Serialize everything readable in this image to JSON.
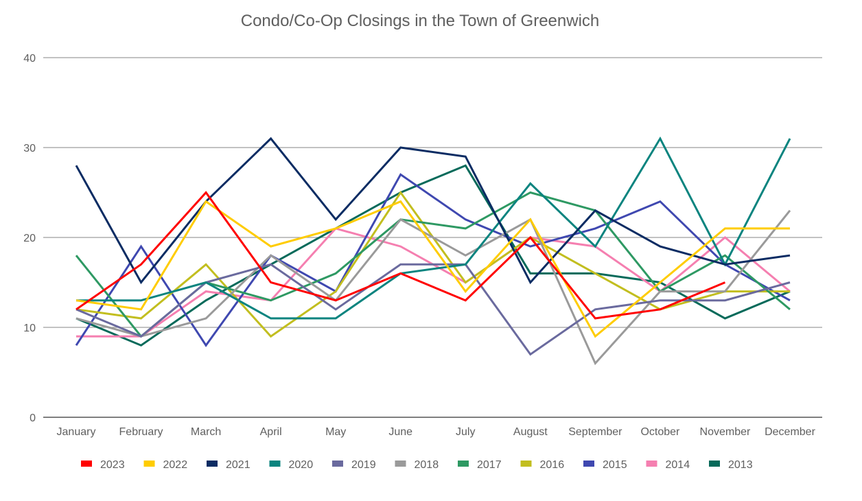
{
  "chart_data": {
    "type": "line",
    "title": "Condo/Co-Op Closings in the Town of Greenwich",
    "xlabel": "",
    "ylabel": "",
    "ylim": [
      0,
      40
    ],
    "yticks": [
      0,
      10,
      20,
      30,
      40
    ],
    "grid": true,
    "legend_position": "bottom",
    "categories": [
      "January",
      "February",
      "March",
      "April",
      "May",
      "June",
      "July",
      "August",
      "September",
      "October",
      "November",
      "December"
    ],
    "series": [
      {
        "name": "2023",
        "color": "#ff0000",
        "values": [
          12,
          17,
          25,
          15,
          13,
          16,
          13,
          20,
          11,
          12,
          15,
          null
        ]
      },
      {
        "name": "2022",
        "color": "#ffcc00",
        "values": [
          13,
          12,
          24,
          19,
          21,
          24,
          14,
          22,
          9,
          15,
          21,
          21
        ]
      },
      {
        "name": "2021",
        "color": "#0b2c63",
        "values": [
          28,
          15,
          24,
          31,
          22,
          30,
          29,
          15,
          23,
          19,
          17,
          18
        ]
      },
      {
        "name": "2020",
        "color": "#0b847f",
        "values": [
          13,
          13,
          15,
          11,
          11,
          16,
          17,
          26,
          19,
          31,
          17,
          31
        ]
      },
      {
        "name": "2019",
        "color": "#6a6a9e",
        "values": [
          12,
          9,
          15,
          17,
          12,
          17,
          17,
          7,
          12,
          13,
          13,
          15
        ]
      },
      {
        "name": "2018",
        "color": "#9a9a9a",
        "values": [
          11,
          9,
          11,
          18,
          13,
          22,
          18,
          22,
          6,
          14,
          14,
          23
        ]
      },
      {
        "name": "2017",
        "color": "#2e9963",
        "values": [
          18,
          9,
          15,
          13,
          16,
          22,
          21,
          25,
          23,
          14,
          18,
          12
        ]
      },
      {
        "name": "2016",
        "color": "#c2be1f",
        "values": [
          12,
          11,
          17,
          9,
          14,
          25,
          15,
          20,
          16,
          12,
          14,
          14
        ]
      },
      {
        "name": "2015",
        "color": "#3f48b0",
        "values": [
          8,
          19,
          8,
          18,
          14,
          27,
          22,
          19,
          21,
          24,
          17,
          13
        ]
      },
      {
        "name": "2014",
        "color": "#f57fb0",
        "values": [
          9,
          9,
          14,
          13,
          21,
          19,
          15,
          20,
          19,
          14,
          20,
          14
        ]
      },
      {
        "name": "2013",
        "color": "#066a5a",
        "values": [
          11,
          8,
          13,
          17,
          21,
          25,
          28,
          16,
          16,
          15,
          11,
          14
        ]
      }
    ]
  }
}
